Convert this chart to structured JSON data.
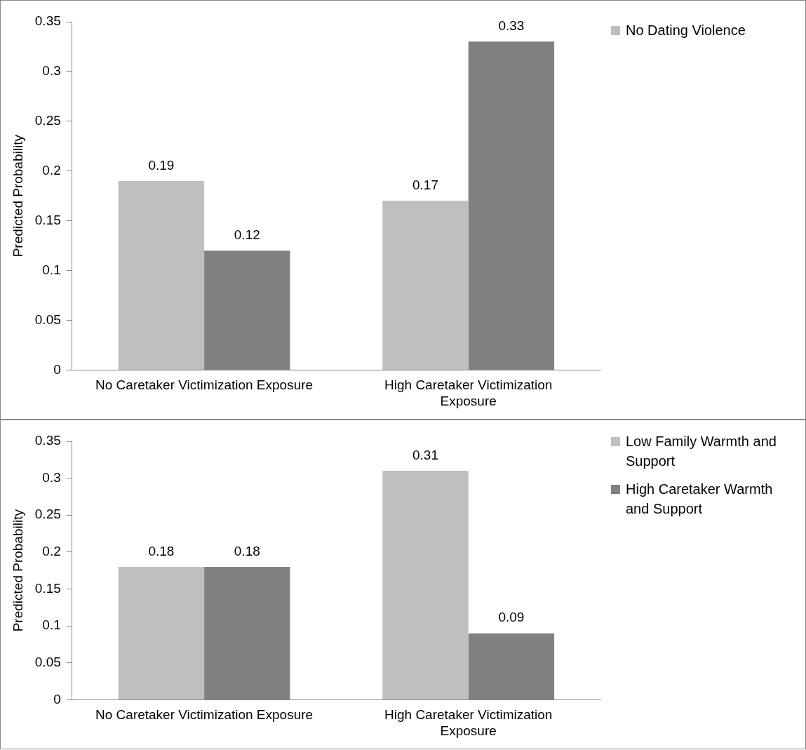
{
  "chart_data": [
    {
      "type": "bar",
      "ylabel": "Predicted Probability",
      "categories": [
        "No Caretaker Victimization Exposure",
        "High Caretaker Victimization Exposure"
      ],
      "series": [
        {
          "name": "No Dating Violence",
          "color": "#bfbfbf",
          "values": [
            0.19,
            0.17
          ]
        },
        {
          "color": "#808080",
          "values": [
            0.12,
            0.33
          ]
        }
      ],
      "ylim": [
        0,
        0.35
      ],
      "yticks": [
        0,
        0.05,
        0.1,
        0.15,
        0.2,
        0.25,
        0.3,
        0.35
      ],
      "grid": false,
      "legend": "top right",
      "data_labels": true
    },
    {
      "type": "bar",
      "ylabel": "Predicted Probability",
      "categories": [
        "No Caretaker Victimization Exposure",
        "High Caretaker Victimization Exposure"
      ],
      "series": [
        {
          "name": "Low Family Warmth and Support",
          "color": "#bfbfbf",
          "values": [
            0.18,
            0.31
          ]
        },
        {
          "name": "High Caretaker Warmth and Support",
          "color": "#808080",
          "values": [
            0.18,
            0.09
          ]
        }
      ],
      "ylim": [
        0,
        0.35
      ],
      "yticks": [
        0,
        0.05,
        0.1,
        0.15,
        0.2,
        0.25,
        0.3,
        0.35
      ],
      "grid": false,
      "legend": "top right",
      "data_labels": true
    }
  ]
}
